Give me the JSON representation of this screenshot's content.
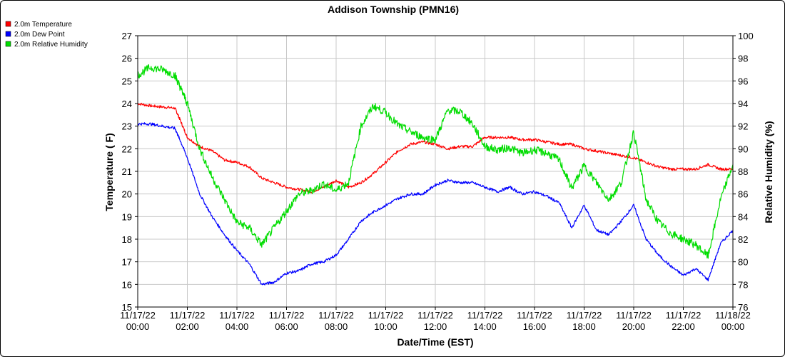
{
  "chart_data": {
    "type": "line",
    "title": "Addison Township (PMN16)",
    "xlabel": "Date/Time (EST)",
    "ylabel": "Temperature ( F)",
    "y2label": "Relative Humidity (%)",
    "ylim": [
      15,
      27
    ],
    "y2lim": [
      76,
      100
    ],
    "grid": true,
    "legend_position": "top-left",
    "x_ticks": [
      {
        "h": 0,
        "date": "11/17/22",
        "time": "00:00"
      },
      {
        "h": 2,
        "date": "11/17/22",
        "time": "02:00"
      },
      {
        "h": 4,
        "date": "11/17/22",
        "time": "04:00"
      },
      {
        "h": 6,
        "date": "11/17/22",
        "time": "06:00"
      },
      {
        "h": 8,
        "date": "11/17/22",
        "time": "08:00"
      },
      {
        "h": 10,
        "date": "11/17/22",
        "time": "10:00"
      },
      {
        "h": 12,
        "date": "11/17/22",
        "time": "12:00"
      },
      {
        "h": 14,
        "date": "11/17/22",
        "time": "14:00"
      },
      {
        "h": 16,
        "date": "11/17/22",
        "time": "16:00"
      },
      {
        "h": 18,
        "date": "11/17/22",
        "time": "18:00"
      },
      {
        "h": 20,
        "date": "11/17/22",
        "time": "20:00"
      },
      {
        "h": 22,
        "date": "11/17/22",
        "time": "22:00"
      },
      {
        "h": 24,
        "date": "11/18/22",
        "time": "00:00"
      }
    ],
    "y_ticks": [
      15,
      16,
      17,
      18,
      19,
      20,
      21,
      22,
      23,
      24,
      25,
      26,
      27
    ],
    "y2_ticks": [
      76,
      78,
      80,
      82,
      84,
      86,
      88,
      90,
      92,
      94,
      96,
      98,
      100
    ],
    "series": [
      {
        "name": "2.0m Temperature",
        "axis": "left",
        "color": "#ff0000",
        "x": [
          0,
          0.5,
          1,
          1.5,
          1.7,
          2,
          2.5,
          3,
          3.5,
          4,
          4.5,
          5,
          5.5,
          6,
          6.5,
          7,
          7.5,
          8,
          8.5,
          9,
          9.5,
          10,
          10.5,
          11,
          11.5,
          12,
          12.5,
          13,
          13.5,
          14,
          14.5,
          15,
          15.5,
          16,
          16.5,
          17,
          17.5,
          18,
          18.5,
          19,
          19.5,
          20,
          20.5,
          21,
          21.5,
          22,
          22.5,
          23,
          23.5,
          24
        ],
        "values": [
          24,
          23.9,
          23.85,
          23.8,
          23.3,
          22.5,
          22.1,
          21.9,
          21.5,
          21.4,
          21.2,
          20.7,
          20.5,
          20.3,
          20.2,
          20.1,
          20.3,
          20.6,
          20.3,
          20.5,
          20.9,
          21.4,
          21.9,
          22.2,
          22.3,
          22.2,
          22.0,
          22.1,
          22.1,
          22.5,
          22.5,
          22.5,
          22.4,
          22.4,
          22.3,
          22.2,
          22.2,
          22.0,
          21.9,
          21.8,
          21.7,
          21.6,
          21.4,
          21.2,
          21.1,
          21.1,
          21.1,
          21.3,
          21.1,
          21.1
        ]
      },
      {
        "name": "2.0m Dew Point",
        "axis": "left",
        "color": "#0000ff",
        "x": [
          0,
          0.5,
          1,
          1.5,
          1.7,
          2,
          2.5,
          3,
          3.5,
          4,
          4.5,
          5,
          5.5,
          6,
          6.5,
          7,
          7.5,
          8,
          8.5,
          9,
          9.5,
          10,
          10.5,
          11,
          11.5,
          12,
          12.5,
          13,
          13.5,
          14,
          14.5,
          15,
          15.5,
          16,
          16.5,
          17,
          17.5,
          18,
          18.5,
          19,
          19.5,
          20,
          20.5,
          21,
          21.5,
          22,
          22.5,
          23,
          23.5,
          24
        ],
        "values": [
          23.1,
          23.1,
          23.0,
          22.9,
          22.4,
          21.6,
          20.0,
          19.0,
          18.2,
          17.5,
          16.9,
          16.0,
          16.1,
          16.5,
          16.6,
          16.9,
          17.0,
          17.3,
          18.0,
          18.8,
          19.2,
          19.5,
          19.8,
          20.0,
          20.0,
          20.4,
          20.6,
          20.5,
          20.5,
          20.3,
          20.1,
          20.3,
          20.0,
          20.1,
          19.9,
          19.6,
          18.5,
          19.5,
          18.4,
          18.2,
          18.8,
          19.5,
          18.0,
          17.3,
          16.8,
          16.4,
          16.7,
          16.2,
          17.8,
          18.4
        ]
      },
      {
        "name": "2.0m Relative Humidity",
        "axis": "right",
        "color": "#00dd00",
        "x": [
          0,
          0.5,
          1,
          1.5,
          1.7,
          2,
          2.5,
          3,
          3.5,
          4,
          4.5,
          5,
          5.5,
          6,
          6.5,
          7,
          7.5,
          8,
          8.5,
          9,
          9.5,
          10,
          10.5,
          11,
          11.5,
          12,
          12.5,
          13,
          13.5,
          14,
          14.5,
          15,
          15.5,
          16,
          16.5,
          17,
          17.5,
          18,
          18.5,
          19,
          19.5,
          20,
          20.5,
          21,
          21.5,
          22,
          22.5,
          23,
          23.5,
          24
        ],
        "values": [
          96.5,
          97.2,
          97.0,
          96.5,
          95.5,
          94,
          90,
          87.5,
          85.5,
          83.5,
          83.0,
          81.5,
          83.0,
          84.5,
          86.0,
          86.3,
          86.9,
          86.3,
          87.0,
          92.0,
          93.8,
          93.2,
          92.1,
          91.5,
          91.0,
          90.8,
          93.4,
          93.3,
          92.2,
          90.2,
          89.9,
          90.1,
          89.6,
          89.9,
          89.6,
          89.0,
          86.5,
          88.5,
          87.0,
          85.5,
          87.0,
          91.5,
          85.5,
          83.5,
          82.5,
          82.0,
          81.5,
          80.5,
          85.5,
          88.6
        ]
      }
    ]
  }
}
